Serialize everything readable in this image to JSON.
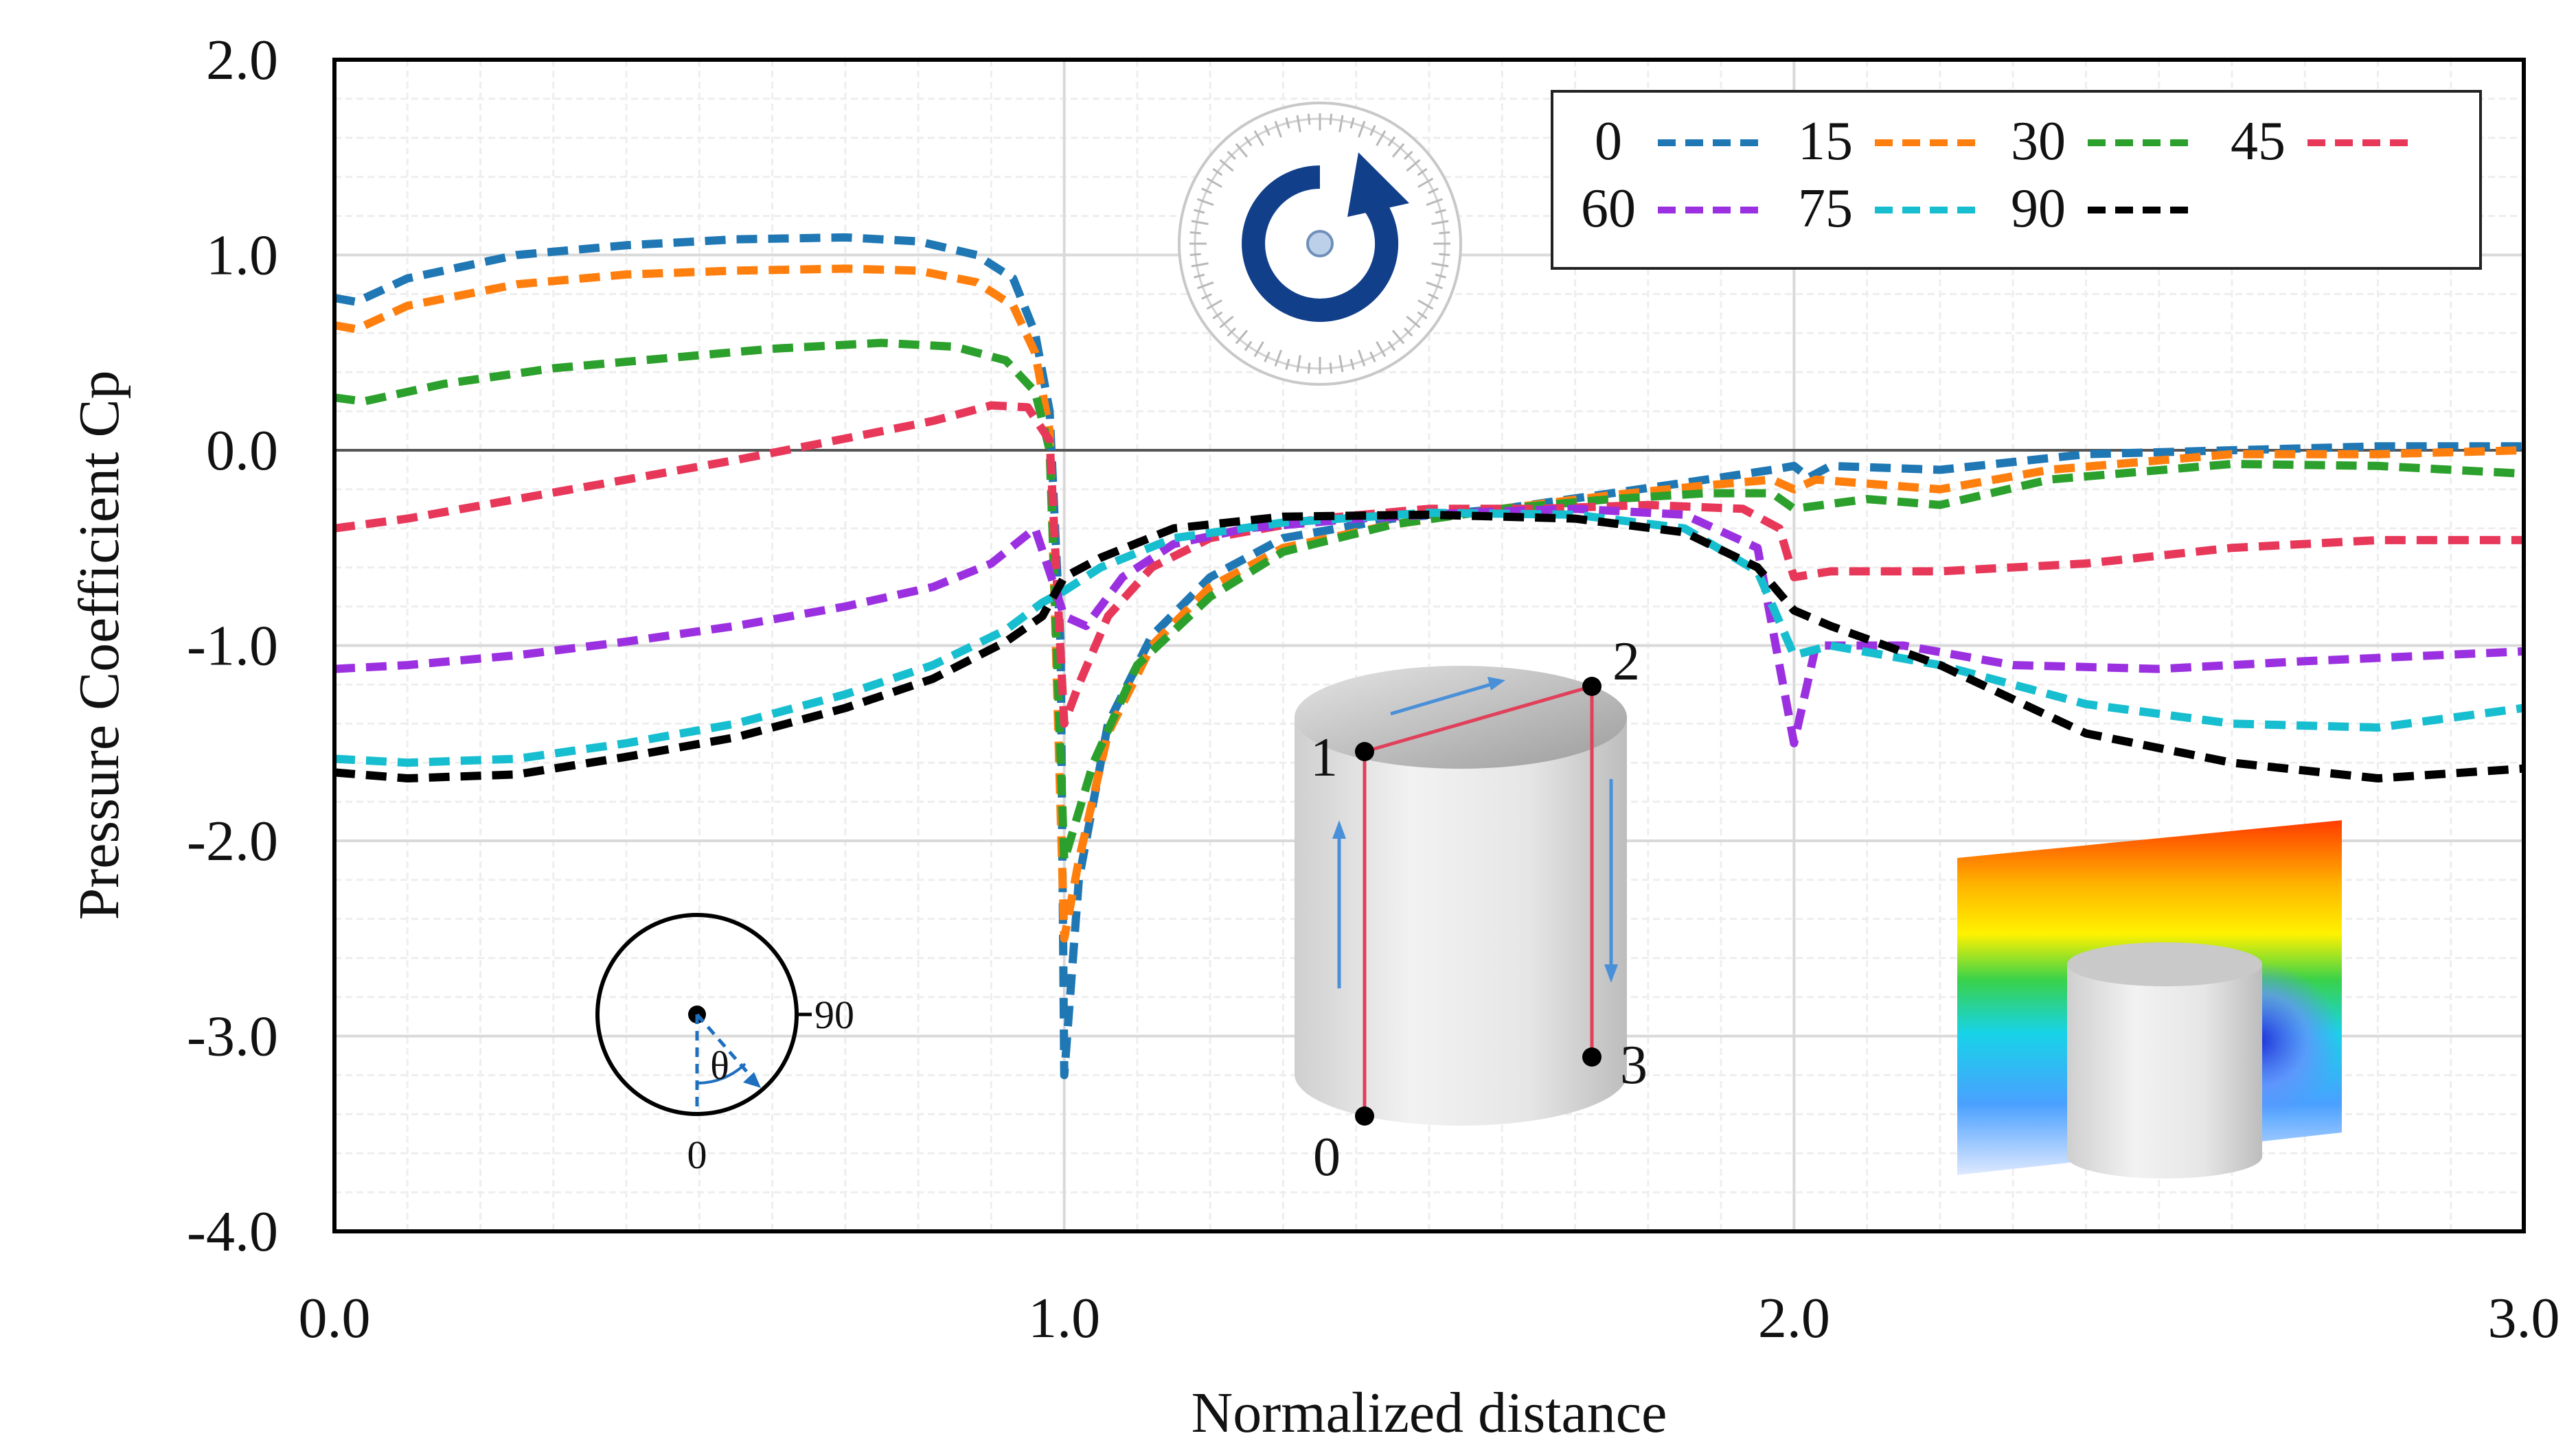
{
  "chart_data": {
    "type": "line",
    "title": "",
    "xlabel": "Normalized distance",
    "ylabel": "Pressure Coefficient Cp",
    "xlim": [
      0.0,
      3.0
    ],
    "ylim": [
      -4.0,
      2.0
    ],
    "grid": true,
    "legend_position": "top-right",
    "x_ticks": [
      {
        "value": 0.0,
        "label": "0.0"
      },
      {
        "value": 1.0,
        "label": "1.0"
      },
      {
        "value": 2.0,
        "label": "2.0"
      },
      {
        "value": 3.0,
        "label": "3.0"
      }
    ],
    "y_ticks": [
      {
        "value": 2.0,
        "label": "2.0"
      },
      {
        "value": 1.0,
        "label": "1.0"
      },
      {
        "value": 0.0,
        "label": "0.0"
      },
      {
        "value": -1.0,
        "label": "-1.0"
      },
      {
        "value": -2.0,
        "label": "-2.0"
      },
      {
        "value": -3.0,
        "label": "-3.0"
      },
      {
        "value": -4.0,
        "label": "-4.0"
      }
    ],
    "series": [
      {
        "name": "0",
        "color": "#1f77b4",
        "points": [
          [
            0.0,
            0.78
          ],
          [
            0.03,
            0.76
          ],
          [
            0.1,
            0.88
          ],
          [
            0.25,
            1.0
          ],
          [
            0.4,
            1.05
          ],
          [
            0.55,
            1.08
          ],
          [
            0.7,
            1.09
          ],
          [
            0.8,
            1.07
          ],
          [
            0.88,
            1.0
          ],
          [
            0.93,
            0.88
          ],
          [
            0.96,
            0.6
          ],
          [
            0.98,
            0.2
          ],
          [
            0.995,
            -1.0
          ],
          [
            1.0,
            -3.2
          ],
          [
            1.02,
            -2.2
          ],
          [
            1.06,
            -1.4
          ],
          [
            1.12,
            -0.95
          ],
          [
            1.2,
            -0.65
          ],
          [
            1.3,
            -0.45
          ],
          [
            1.45,
            -0.35
          ],
          [
            1.6,
            -0.3
          ],
          [
            1.75,
            -0.22
          ],
          [
            1.88,
            -0.15
          ],
          [
            1.97,
            -0.1
          ],
          [
            2.0,
            -0.08
          ],
          [
            2.02,
            -0.14
          ],
          [
            2.05,
            -0.08
          ],
          [
            2.2,
            -0.1
          ],
          [
            2.4,
            -0.02
          ],
          [
            2.6,
            0.0
          ],
          [
            2.8,
            0.02
          ],
          [
            3.0,
            0.02
          ]
        ]
      },
      {
        "name": "15",
        "color": "#ff7f0e",
        "points": [
          [
            0.0,
            0.64
          ],
          [
            0.03,
            0.62
          ],
          [
            0.1,
            0.74
          ],
          [
            0.25,
            0.85
          ],
          [
            0.4,
            0.9
          ],
          [
            0.55,
            0.92
          ],
          [
            0.7,
            0.93
          ],
          [
            0.8,
            0.92
          ],
          [
            0.88,
            0.86
          ],
          [
            0.93,
            0.74
          ],
          [
            0.96,
            0.5
          ],
          [
            0.98,
            0.1
          ],
          [
            1.0,
            -2.5
          ],
          [
            1.02,
            -2.1
          ],
          [
            1.06,
            -1.45
          ],
          [
            1.12,
            -1.0
          ],
          [
            1.2,
            -0.7
          ],
          [
            1.3,
            -0.5
          ],
          [
            1.45,
            -0.38
          ],
          [
            1.6,
            -0.3
          ],
          [
            1.75,
            -0.23
          ],
          [
            1.88,
            -0.18
          ],
          [
            1.97,
            -0.15
          ],
          [
            2.0,
            -0.2
          ],
          [
            2.03,
            -0.15
          ],
          [
            2.2,
            -0.2
          ],
          [
            2.35,
            -0.1
          ],
          [
            2.6,
            -0.02
          ],
          [
            2.8,
            -0.02
          ],
          [
            3.0,
            0.0
          ]
        ]
      },
      {
        "name": "30",
        "color": "#2ca02c",
        "points": [
          [
            0.0,
            0.27
          ],
          [
            0.04,
            0.25
          ],
          [
            0.15,
            0.34
          ],
          [
            0.3,
            0.42
          ],
          [
            0.45,
            0.47
          ],
          [
            0.6,
            0.52
          ],
          [
            0.75,
            0.55
          ],
          [
            0.85,
            0.53
          ],
          [
            0.92,
            0.46
          ],
          [
            0.96,
            0.3
          ],
          [
            0.98,
            0.0
          ],
          [
            1.0,
            -2.1
          ],
          [
            1.04,
            -1.6
          ],
          [
            1.1,
            -1.1
          ],
          [
            1.2,
            -0.75
          ],
          [
            1.3,
            -0.52
          ],
          [
            1.45,
            -0.38
          ],
          [
            1.6,
            -0.3
          ],
          [
            1.75,
            -0.25
          ],
          [
            1.88,
            -0.22
          ],
          [
            1.97,
            -0.22
          ],
          [
            2.0,
            -0.3
          ],
          [
            2.1,
            -0.25
          ],
          [
            2.2,
            -0.28
          ],
          [
            2.35,
            -0.15
          ],
          [
            2.6,
            -0.07
          ],
          [
            2.8,
            -0.08
          ],
          [
            3.0,
            -0.12
          ]
        ]
      },
      {
        "name": "45",
        "color": "#e8385a",
        "points": [
          [
            0.0,
            -0.4
          ],
          [
            0.1,
            -0.35
          ],
          [
            0.25,
            -0.25
          ],
          [
            0.4,
            -0.15
          ],
          [
            0.55,
            -0.05
          ],
          [
            0.7,
            0.06
          ],
          [
            0.82,
            0.15
          ],
          [
            0.9,
            0.23
          ],
          [
            0.95,
            0.22
          ],
          [
            0.98,
            0.05
          ],
          [
            1.0,
            -1.4
          ],
          [
            1.02,
            -1.2
          ],
          [
            1.06,
            -0.85
          ],
          [
            1.12,
            -0.6
          ],
          [
            1.2,
            -0.45
          ],
          [
            1.35,
            -0.35
          ],
          [
            1.5,
            -0.3
          ],
          [
            1.65,
            -0.3
          ],
          [
            1.8,
            -0.28
          ],
          [
            1.93,
            -0.3
          ],
          [
            1.98,
            -0.4
          ],
          [
            2.0,
            -0.65
          ],
          [
            2.05,
            -0.62
          ],
          [
            2.2,
            -0.62
          ],
          [
            2.4,
            -0.58
          ],
          [
            2.6,
            -0.5
          ],
          [
            2.8,
            -0.46
          ],
          [
            3.0,
            -0.46
          ]
        ]
      },
      {
        "name": "60",
        "color": "#9b30e0",
        "points": [
          [
            0.0,
            -1.12
          ],
          [
            0.1,
            -1.1
          ],
          [
            0.25,
            -1.05
          ],
          [
            0.4,
            -0.98
          ],
          [
            0.55,
            -0.9
          ],
          [
            0.7,
            -0.8
          ],
          [
            0.82,
            -0.7
          ],
          [
            0.9,
            -0.58
          ],
          [
            0.96,
            -0.4
          ],
          [
            1.0,
            -0.85
          ],
          [
            1.03,
            -0.9
          ],
          [
            1.08,
            -0.65
          ],
          [
            1.15,
            -0.48
          ],
          [
            1.25,
            -0.4
          ],
          [
            1.4,
            -0.35
          ],
          [
            1.55,
            -0.32
          ],
          [
            1.7,
            -0.3
          ],
          [
            1.85,
            -0.33
          ],
          [
            1.95,
            -0.5
          ],
          [
            2.0,
            -1.5
          ],
          [
            2.03,
            -1.0
          ],
          [
            2.15,
            -1.0
          ],
          [
            2.3,
            -1.1
          ],
          [
            2.5,
            -1.12
          ],
          [
            2.7,
            -1.08
          ],
          [
            3.0,
            -1.03
          ]
        ]
      },
      {
        "name": "75",
        "color": "#17becf",
        "points": [
          [
            0.0,
            -1.58
          ],
          [
            0.1,
            -1.6
          ],
          [
            0.25,
            -1.58
          ],
          [
            0.4,
            -1.5
          ],
          [
            0.55,
            -1.4
          ],
          [
            0.7,
            -1.25
          ],
          [
            0.82,
            -1.1
          ],
          [
            0.92,
            -0.92
          ],
          [
            0.97,
            -0.78
          ],
          [
            1.0,
            -0.72
          ],
          [
            1.05,
            -0.6
          ],
          [
            1.15,
            -0.45
          ],
          [
            1.3,
            -0.37
          ],
          [
            1.5,
            -0.32
          ],
          [
            1.7,
            -0.33
          ],
          [
            1.85,
            -0.4
          ],
          [
            1.95,
            -0.62
          ],
          [
            2.0,
            -1.05
          ],
          [
            2.05,
            -1.0
          ],
          [
            2.2,
            -1.1
          ],
          [
            2.4,
            -1.3
          ],
          [
            2.6,
            -1.4
          ],
          [
            2.8,
            -1.42
          ],
          [
            3.0,
            -1.32
          ]
        ]
      },
      {
        "name": "90",
        "color": "#000000",
        "points": [
          [
            0.0,
            -1.65
          ],
          [
            0.1,
            -1.68
          ],
          [
            0.25,
            -1.66
          ],
          [
            0.4,
            -1.57
          ],
          [
            0.55,
            -1.47
          ],
          [
            0.7,
            -1.32
          ],
          [
            0.82,
            -1.17
          ],
          [
            0.92,
            -0.98
          ],
          [
            0.97,
            -0.85
          ],
          [
            1.0,
            -0.65
          ],
          [
            1.05,
            -0.55
          ],
          [
            1.15,
            -0.4
          ],
          [
            1.3,
            -0.34
          ],
          [
            1.5,
            -0.33
          ],
          [
            1.7,
            -0.35
          ],
          [
            1.85,
            -0.42
          ],
          [
            1.95,
            -0.6
          ],
          [
            2.0,
            -0.82
          ],
          [
            2.05,
            -0.9
          ],
          [
            2.2,
            -1.1
          ],
          [
            2.4,
            -1.45
          ],
          [
            2.6,
            -1.6
          ],
          [
            2.8,
            -1.68
          ],
          [
            3.0,
            -1.63
          ]
        ]
      }
    ],
    "annotations": {
      "inset_angle_label_90": "90",
      "inset_angle_label_0": "0",
      "inset_theta": "θ",
      "cylinder_points": [
        "0",
        "1",
        "2",
        "3"
      ]
    }
  }
}
